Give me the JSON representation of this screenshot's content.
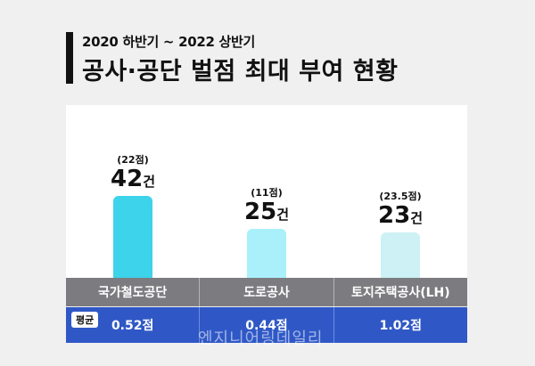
{
  "subtitle": "2020 하반기 ~ 2022 상반기",
  "title": "공사·공단 벌점 최대 부여 현황",
  "chart_data": {
    "type": "bar",
    "categories": [
      "국가철도공단",
      "도로공사",
      "토지주택공사(LH)"
    ],
    "values": [
      42,
      25,
      23
    ],
    "unit": "건",
    "notes": [
      "(22점)",
      "(11점)",
      "(23.5점)"
    ],
    "colors": [
      "#3dd3ea",
      "#a9f0fb",
      "#cdf1f5"
    ],
    "ylim": [
      0,
      50
    ]
  },
  "table": {
    "avg_label": "평균",
    "averages": [
      "0.52점",
      "0.44점",
      "1.02점"
    ]
  },
  "watermark": "엔지니어링데일리"
}
